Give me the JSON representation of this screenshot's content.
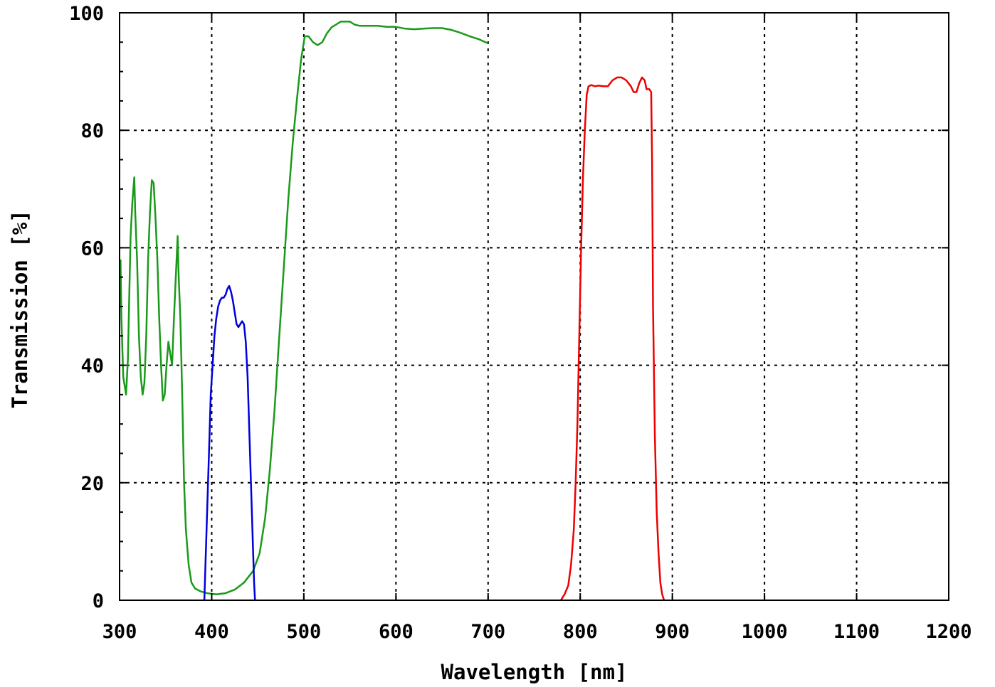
{
  "chart_data": {
    "type": "line",
    "xlabel": "Wavelength [nm]",
    "ylabel": "Transmission [%]",
    "xlim": [
      300,
      1200
    ],
    "ylim": [
      0,
      100
    ],
    "xticks": [
      300,
      400,
      500,
      600,
      700,
      800,
      900,
      1000,
      1100,
      1200
    ],
    "yticks": [
      0,
      20,
      40,
      60,
      80,
      100
    ],
    "grid": true,
    "legend": "none",
    "series": [
      {
        "color": "#1a9a1a",
        "points": [
          [
            301,
            58
          ],
          [
            302,
            48
          ],
          [
            304,
            38
          ],
          [
            306,
            36
          ],
          [
            307,
            35
          ],
          [
            309,
            41
          ],
          [
            311,
            55
          ],
          [
            312,
            62
          ],
          [
            314,
            68
          ],
          [
            316,
            72
          ],
          [
            317,
            66
          ],
          [
            319,
            58
          ],
          [
            321,
            45
          ],
          [
            323,
            38
          ],
          [
            325,
            35
          ],
          [
            327,
            37
          ],
          [
            329,
            45
          ],
          [
            331,
            58
          ],
          [
            333,
            66
          ],
          [
            335,
            71.5
          ],
          [
            337,
            71
          ],
          [
            339,
            65
          ],
          [
            341,
            58
          ],
          [
            343,
            48
          ],
          [
            345,
            40
          ],
          [
            347,
            34
          ],
          [
            349,
            35
          ],
          [
            351,
            40
          ],
          [
            353,
            44
          ],
          [
            355,
            42
          ],
          [
            357,
            40
          ],
          [
            359,
            48
          ],
          [
            361,
            55
          ],
          [
            363,
            62
          ],
          [
            364,
            56
          ],
          [
            366,
            48
          ],
          [
            368,
            35
          ],
          [
            370,
            20
          ],
          [
            372,
            12
          ],
          [
            375,
            6
          ],
          [
            378,
            3
          ],
          [
            382,
            2
          ],
          [
            388,
            1.5
          ],
          [
            395,
            1.2
          ],
          [
            405,
            1
          ],
          [
            415,
            1.2
          ],
          [
            425,
            1.8
          ],
          [
            435,
            3
          ],
          [
            445,
            5
          ],
          [
            452,
            8
          ],
          [
            458,
            14
          ],
          [
            463,
            22
          ],
          [
            468,
            32
          ],
          [
            473,
            44
          ],
          [
            478,
            56
          ],
          [
            483,
            68
          ],
          [
            488,
            78
          ],
          [
            493,
            86
          ],
          [
            497,
            92
          ],
          [
            501,
            96
          ],
          [
            505,
            96
          ],
          [
            510,
            95
          ],
          [
            515,
            94.5
          ],
          [
            520,
            95
          ],
          [
            525,
            96.5
          ],
          [
            530,
            97.5
          ],
          [
            535,
            98
          ],
          [
            540,
            98.5
          ],
          [
            545,
            98.5
          ],
          [
            550,
            98.5
          ],
          [
            555,
            98
          ],
          [
            560,
            97.8
          ],
          [
            570,
            97.8
          ],
          [
            580,
            97.8
          ],
          [
            590,
            97.6
          ],
          [
            600,
            97.6
          ],
          [
            610,
            97.3
          ],
          [
            620,
            97.2
          ],
          [
            630,
            97.3
          ],
          [
            640,
            97.4
          ],
          [
            650,
            97.4
          ],
          [
            660,
            97.1
          ],
          [
            670,
            96.6
          ],
          [
            680,
            96
          ],
          [
            690,
            95.5
          ],
          [
            700,
            94.8
          ]
        ]
      },
      {
        "color": "#0000dd",
        "points": [
          [
            392,
            0
          ],
          [
            393,
            5
          ],
          [
            395,
            15
          ],
          [
            397,
            25
          ],
          [
            399,
            35
          ],
          [
            401,
            40
          ],
          [
            403,
            45
          ],
          [
            405,
            48
          ],
          [
            407,
            50
          ],
          [
            409,
            51
          ],
          [
            411,
            51.5
          ],
          [
            413,
            51.5
          ],
          [
            415,
            52
          ],
          [
            417,
            53
          ],
          [
            419,
            53.5
          ],
          [
            421,
            52.5
          ],
          [
            423,
            51
          ],
          [
            425,
            49
          ],
          [
            427,
            47
          ],
          [
            429,
            46.5
          ],
          [
            431,
            47
          ],
          [
            433,
            47.5
          ],
          [
            435,
            47
          ],
          [
            437,
            44
          ],
          [
            439,
            38
          ],
          [
            441,
            28
          ],
          [
            443,
            18
          ],
          [
            445,
            8
          ],
          [
            446,
            3
          ],
          [
            447,
            0
          ]
        ]
      },
      {
        "color": "#ee0000",
        "points": [
          [
            779,
            0
          ],
          [
            783,
            1
          ],
          [
            787,
            2.5
          ],
          [
            790,
            6
          ],
          [
            793,
            12
          ],
          [
            795,
            20
          ],
          [
            797,
            30
          ],
          [
            799,
            45
          ],
          [
            801,
            60
          ],
          [
            803,
            72
          ],
          [
            805,
            80
          ],
          [
            807,
            86
          ],
          [
            809,
            87.5
          ],
          [
            812,
            87.7
          ],
          [
            816,
            87.5
          ],
          [
            820,
            87.6
          ],
          [
            825,
            87.5
          ],
          [
            830,
            87.5
          ],
          [
            835,
            88.5
          ],
          [
            840,
            89
          ],
          [
            845,
            89
          ],
          [
            850,
            88.5
          ],
          [
            855,
            87.5
          ],
          [
            858,
            86.5
          ],
          [
            861,
            86.5
          ],
          [
            864,
            88
          ],
          [
            867,
            89
          ],
          [
            870,
            88.5
          ],
          [
            872,
            87
          ],
          [
            875,
            87
          ],
          [
            877,
            86.5
          ],
          [
            878,
            75
          ],
          [
            879,
            50
          ],
          [
            881,
            28
          ],
          [
            883,
            15
          ],
          [
            885,
            8
          ],
          [
            887,
            3
          ],
          [
            889,
            1
          ],
          [
            891,
            0
          ]
        ]
      }
    ]
  }
}
